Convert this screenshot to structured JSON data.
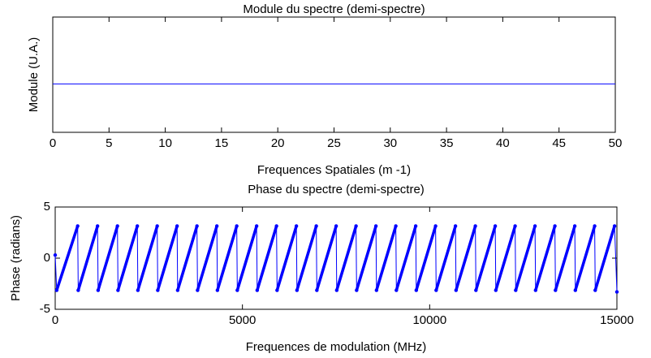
{
  "chart_data": [
    {
      "type": "line",
      "title": "Module du spectre (demi-spectre)",
      "xlabel": "Frequences Spatiales (m -1)",
      "ylabel": "Module (U.A.)",
      "xlim": [
        0,
        50
      ],
      "xticks": [
        0,
        5,
        10,
        15,
        20,
        25,
        30,
        35,
        40,
        45,
        50
      ],
      "ylim": [
        0,
        1
      ],
      "yticks": [],
      "series": [
        {
          "color": "#0000ff",
          "x": [
            0,
            50
          ],
          "values": [
            0.42,
            0.42
          ]
        }
      ]
    },
    {
      "type": "line",
      "title": "Phase du spectre (demi-spectre)",
      "xlabel": "Frequences de modulation (MHz)",
      "ylabel": "Phase (radians)",
      "xlim": [
        0,
        15000
      ],
      "xticks": [
        0,
        5000,
        10000,
        15000
      ],
      "ylim": [
        -5,
        5
      ],
      "yticks": [
        -5,
        0,
        5
      ],
      "markers": true,
      "series": [
        {
          "color": "#0000ff",
          "x": [
            0,
            40,
            600,
            615,
            1131,
            1146,
            1662,
            1677,
            2193,
            2208,
            2724,
            2739,
            3255,
            3270,
            3786,
            3801,
            4317,
            4332,
            4848,
            4863,
            5379,
            5394,
            5910,
            5925,
            6441,
            6456,
            6972,
            6987,
            7503,
            7518,
            8034,
            8049,
            8565,
            8580,
            9096,
            9111,
            9627,
            9642,
            10158,
            10173,
            10689,
            10704,
            11220,
            11235,
            11751,
            11766,
            12282,
            12297,
            12813,
            12828,
            13344,
            13359,
            13875,
            13890,
            14406,
            14421,
            14937,
            15000
          ],
          "values": [
            0.3,
            -3.14,
            3.14,
            -3.14,
            3.14,
            -3.14,
            3.14,
            -3.14,
            3.14,
            -3.14,
            3.14,
            -3.14,
            3.14,
            -3.14,
            3.14,
            -3.14,
            3.14,
            -3.14,
            3.14,
            -3.14,
            3.14,
            -3.14,
            3.14,
            -3.14,
            3.14,
            -3.14,
            3.14,
            -3.14,
            3.14,
            -3.14,
            3.14,
            -3.14,
            3.14,
            -3.14,
            3.14,
            -3.14,
            3.14,
            -3.14,
            3.14,
            -3.14,
            3.14,
            -3.14,
            3.14,
            -3.14,
            3.14,
            -3.14,
            3.14,
            -3.14,
            3.14,
            -3.14,
            3.14,
            -3.14,
            3.14,
            -3.14,
            3.14,
            -3.14,
            3.14,
            -3.3
          ]
        }
      ]
    }
  ]
}
